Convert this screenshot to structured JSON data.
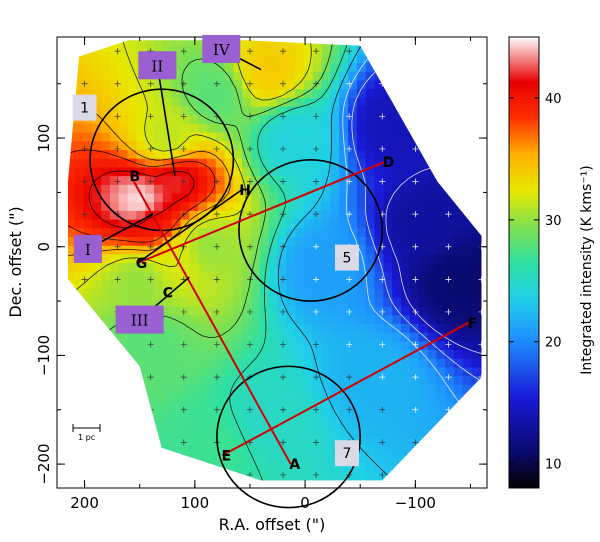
{
  "chart_data": {
    "type": "heatmap",
    "xlabel": "R.A. offset (\")",
    "ylabel": "Dec. offset (\")",
    "xlim": [
      225,
      -165
    ],
    "ylim": [
      -222,
      193
    ],
    "x_ticks": [
      200,
      100,
      0,
      -100
    ],
    "x_tick_labels": [
      "200",
      "100",
      "0",
      "−100"
    ],
    "y_ticks": [
      100,
      0,
      -100,
      -200
    ],
    "y_tick_labels": [
      "100",
      "0",
      "−100",
      "−200"
    ],
    "colorbar": {
      "label": "Integrated intensity (K kms⁻¹)",
      "range": [
        8,
        45
      ],
      "ticks": [
        10,
        20,
        30,
        40
      ],
      "tick_labels": [
        "10",
        "20",
        "30",
        "40"
      ]
    },
    "hotspots": [
      {
        "x": 148,
        "y": 40,
        "value": 45
      },
      {
        "x": 118,
        "y": 62,
        "value": 42
      },
      {
        "x": 138,
        "y": 22,
        "value": 40
      },
      {
        "x": 35,
        "y": 160,
        "value": 34
      },
      {
        "x": 125,
        "y": 95,
        "value": 31
      },
      {
        "x": 115,
        "y": -10,
        "value": 32
      },
      {
        "x": 150,
        "y": -30,
        "value": 30
      },
      {
        "x": 90,
        "y": 0,
        "value": 30
      },
      {
        "x": 80,
        "y": 140,
        "value": 28
      },
      {
        "x": 140,
        "y": -90,
        "value": 28
      },
      {
        "x": 85,
        "y": -185,
        "value": 27
      },
      {
        "x": 30,
        "y": -160,
        "value": 25
      },
      {
        "x": -15,
        "y": -20,
        "value": 21
      },
      {
        "x": 10,
        "y": 100,
        "value": 24
      },
      {
        "x": -60,
        "y": -120,
        "value": 22
      },
      {
        "x": -80,
        "y": 110,
        "value": 14
      },
      {
        "x": -110,
        "y": 20,
        "value": 13
      },
      {
        "x": -140,
        "y": -30,
        "value": 11
      }
    ],
    "lines": [
      {
        "from": "D",
        "to": "G"
      },
      {
        "from": "B",
        "to": "A"
      },
      {
        "from": "F",
        "to": "E"
      }
    ],
    "points": [
      {
        "label": "A",
        "x": 13,
        "y": -200
      },
      {
        "label": "B",
        "x": 158,
        "y": 65
      },
      {
        "label": "C",
        "x": 128,
        "y": -42
      },
      {
        "label": "D",
        "x": -72,
        "y": 78
      },
      {
        "label": "E",
        "x": 75,
        "y": -192
      },
      {
        "label": "F",
        "x": -148,
        "y": -70
      },
      {
        "label": "G",
        "x": 152,
        "y": -15
      },
      {
        "label": "H",
        "x": 58,
        "y": 52
      }
    ],
    "circles": [
      {
        "label": "1",
        "x": 130,
        "y": 80,
        "r": 65
      },
      {
        "label": "5",
        "x": -5,
        "y": 15,
        "r": 65
      },
      {
        "label": "7",
        "x": 15,
        "y": -175,
        "r": 65
      }
    ],
    "circle_labels": [
      {
        "label": "1",
        "x": 200,
        "y": 128
      },
      {
        "label": "5",
        "x": -38,
        "y": -10
      },
      {
        "label": "7",
        "x": -38,
        "y": -190
      }
    ],
    "regions": [
      {
        "label": "I",
        "x": 197,
        "y": -2,
        "arrow_to": [
          138,
          30
        ]
      },
      {
        "label": "II",
        "x": 134,
        "y": 167,
        "arrow_to": [
          118,
          65
        ]
      },
      {
        "label": "III",
        "x": 150,
        "y": -67,
        "arrow_to": [
          105,
          -28
        ]
      },
      {
        "label": "IV",
        "x": 76,
        "y": 182,
        "arrow_to": [
          40,
          163
        ]
      }
    ],
    "scale_bar": {
      "label": "1 pc"
    }
  }
}
